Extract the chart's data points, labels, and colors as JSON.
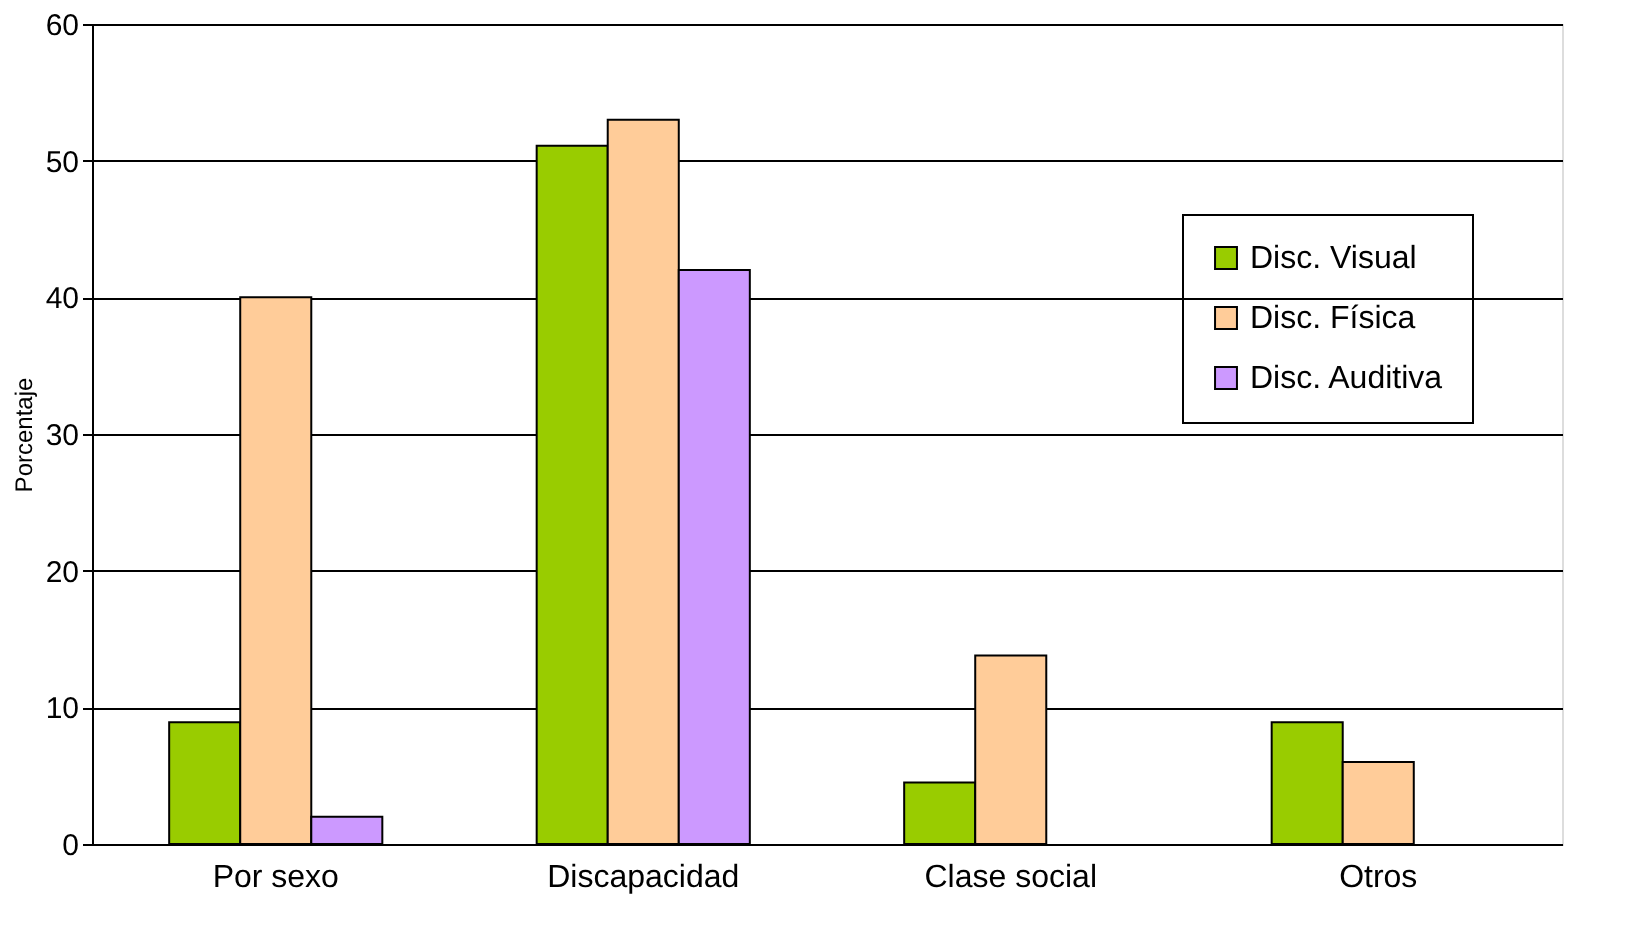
{
  "chart_data": {
    "type": "bar",
    "ylabel": "Porcentaje",
    "categories": [
      "Por sexo",
      "Discapacidad",
      "Clase social",
      "Otros"
    ],
    "series": [
      {
        "name": "Disc. Visual",
        "color": "#99cc00",
        "values": [
          8.9,
          51.1,
          4.5,
          8.9
        ]
      },
      {
        "name": "Disc. Física",
        "color": "#ffcc99",
        "values": [
          40,
          53,
          13.8,
          6
        ]
      },
      {
        "name": "Disc. Auditiva",
        "color": "#cc99ff",
        "values": [
          2,
          42,
          null,
          null
        ]
      }
    ],
    "ylim": [
      0,
      60
    ],
    "yticks": [
      0,
      10,
      20,
      30,
      40,
      50,
      60
    ],
    "grid": "y",
    "legend": "right"
  }
}
